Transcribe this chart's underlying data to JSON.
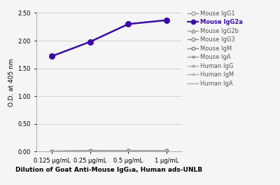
{
  "x_labels": [
    "0.125 μg/mL",
    "0.25 μg/mL",
    "0.5 μg/mL",
    "1 μg/mL"
  ],
  "x_values": [
    0,
    1,
    2,
    3
  ],
  "series": [
    {
      "name": "Mouse IgG1",
      "values": [
        0.01,
        0.01,
        0.01,
        0.02
      ],
      "color": "#999999",
      "marker": "o",
      "lw": 1.0,
      "ms": 3.5
    },
    {
      "name": "Mouse IgG2a",
      "values": [
        1.72,
        1.98,
        2.3,
        2.37
      ],
      "color": "#3a0ca3",
      "marker": "o",
      "lw": 1.8,
      "ms": 5.5
    },
    {
      "name": "Mouse IgG2b",
      "values": [
        0.01,
        0.01,
        0.02,
        0.02
      ],
      "color": "#999999",
      "marker": "^",
      "lw": 1.0,
      "ms": 3.5
    },
    {
      "name": "Mouse IgG3",
      "values": [
        0.01,
        0.02,
        0.02,
        0.02
      ],
      "color": "#888888",
      "marker": "o",
      "lw": 1.0,
      "ms": 3.5
    },
    {
      "name": "Mouse IgM",
      "values": [
        0.01,
        0.01,
        0.02,
        0.02
      ],
      "color": "#888888",
      "marker": "s",
      "lw": 1.0,
      "ms": 3.5
    },
    {
      "name": "Mouse IgA",
      "values": [
        0.01,
        0.02,
        0.02,
        0.02
      ],
      "color": "#999999",
      "marker": "x",
      "lw": 1.0,
      "ms": 3.5
    },
    {
      "name": "Human IgG",
      "values": [
        0.01,
        0.01,
        0.02,
        0.02
      ],
      "color": "#aaaaaa",
      "marker": "x",
      "lw": 1.0,
      "ms": 3.5
    },
    {
      "name": "Human IgM",
      "values": [
        0.01,
        0.01,
        0.01,
        0.02
      ],
      "color": "#aaaaaa",
      "marker": "+",
      "lw": 1.0,
      "ms": 3.5
    },
    {
      "name": "Human IgA",
      "values": [
        0.01,
        0.01,
        0.01,
        0.02
      ],
      "color": "#aaaaaa",
      "marker": "None",
      "lw": 1.0,
      "ms": 3.5
    }
  ],
  "ylabel": "O.D. at 405 nm",
  "xlabel": "Dilution of Goat Anti-Mouse IgG₂a, Human ads-UNLB",
  "ylim": [
    0.0,
    2.5
  ],
  "yticks": [
    0.0,
    0.5,
    1.0,
    1.5,
    2.0,
    2.5
  ],
  "background_color": "#f5f5f5",
  "grid_color": "#cccccc"
}
